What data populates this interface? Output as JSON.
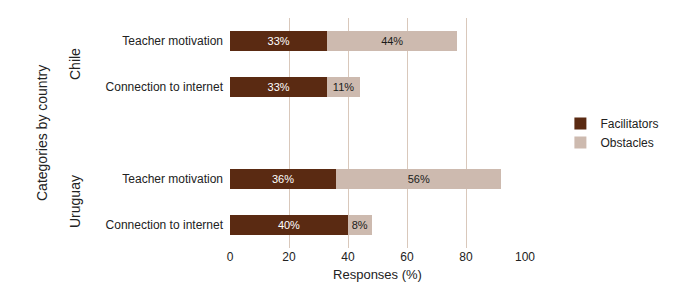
{
  "chart_data": {
    "type": "bar",
    "orientation": "horizontal",
    "stacked": true,
    "data_labels": true,
    "grid": true,
    "legend": "right",
    "x_label": "Responses (%)",
    "y_label": "Categories by country",
    "categories": [
      "Teacher motivation",
      "Connection to internet",
      null,
      "Teacher motivation",
      "Connection to internet"
    ],
    "groups": [
      {
        "label": "Chile",
        "positions": [
          0,
          1
        ]
      },
      {
        "label": "Uruguay",
        "positions": [
          3,
          4
        ]
      }
    ],
    "series": [
      {
        "name": "Facilitators",
        "color": "#5a2a12",
        "values": [
          33,
          33,
          null,
          36,
          40
        ],
        "value_labels": [
          "33%",
          "33%",
          null,
          "36%",
          "40%"
        ]
      },
      {
        "name": "Obstacles",
        "color": "#cdbaaf",
        "values": [
          44,
          11,
          null,
          56,
          8
        ],
        "value_labels": [
          "44%",
          "11%",
          null,
          "56%",
          "8%"
        ]
      }
    ],
    "xlim": [
      0,
      100
    ],
    "xticks": [
      0,
      20,
      40,
      60,
      80,
      100
    ]
  }
}
